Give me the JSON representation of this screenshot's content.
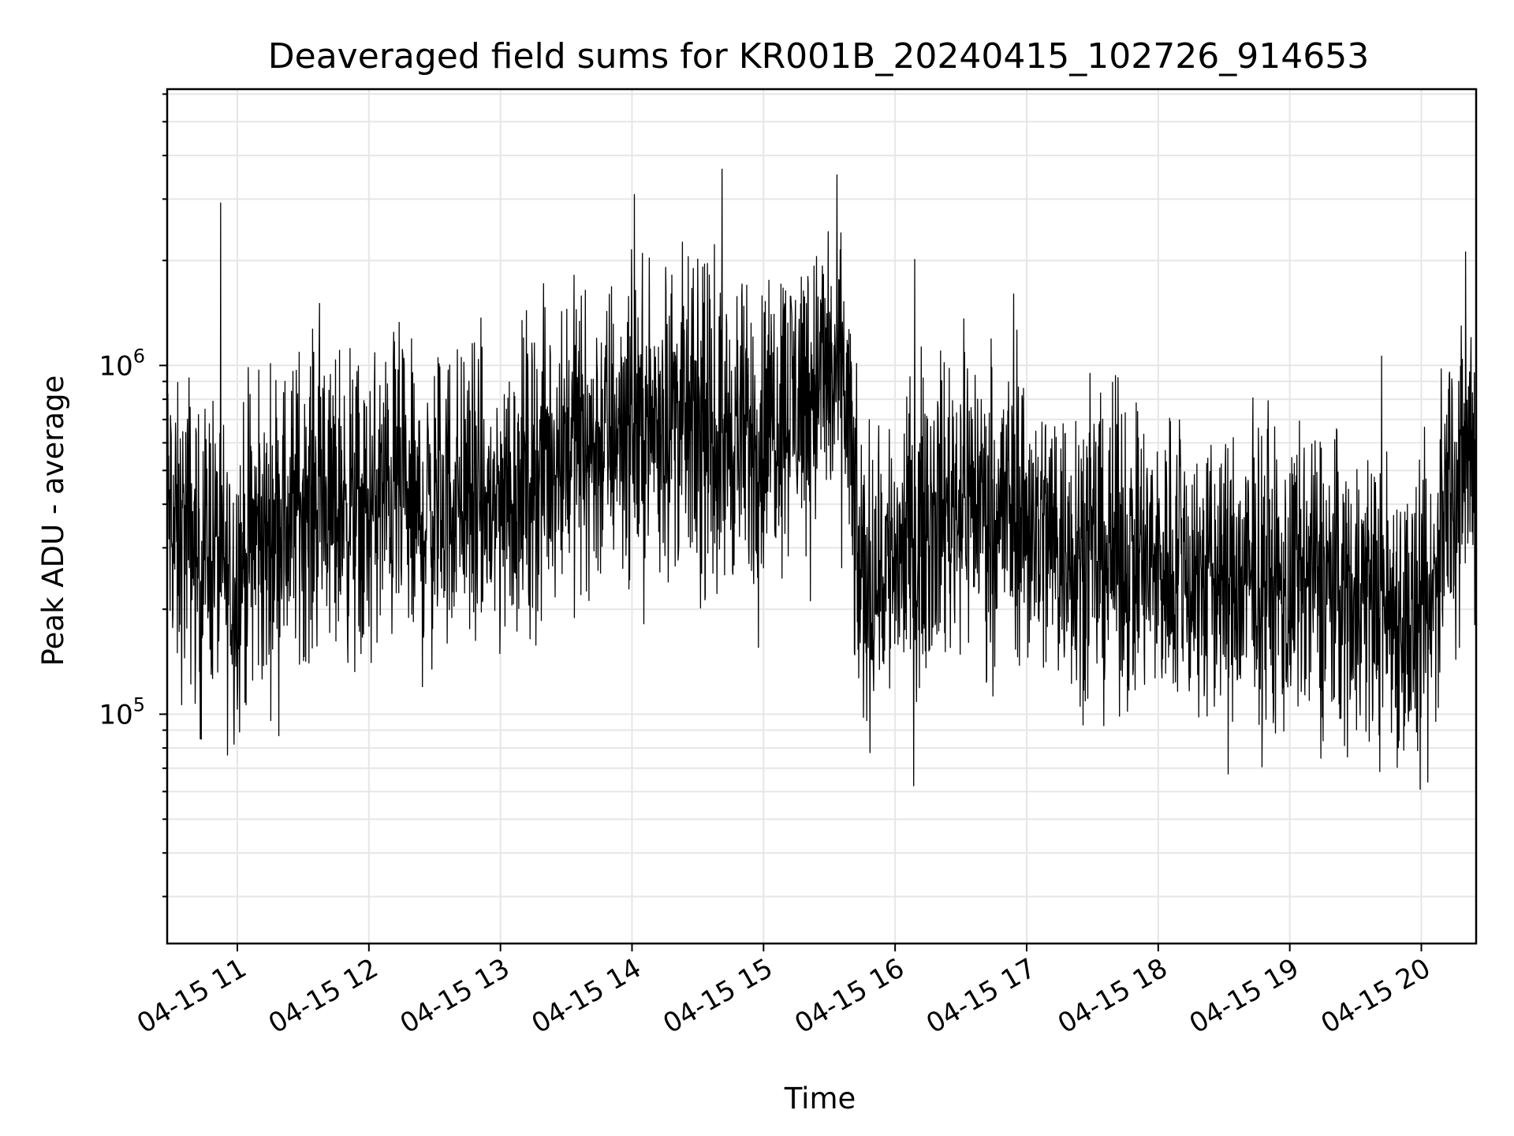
{
  "chart_data": {
    "type": "line",
    "title": "Deaveraged field sums for KR001B_20240415_102726_914653",
    "xlabel": "Time",
    "ylabel": "Peak ADU - average",
    "x_axis": {
      "kind": "datetime",
      "range": [
        "2024-04-15 10:28",
        "2024-04-15 20:25"
      ],
      "tick_labels": [
        "04-15 11",
        "04-15 12",
        "04-15 13",
        "04-15 14",
        "04-15 15",
        "04-15 16",
        "04-15 17",
        "04-15 18",
        "04-15 19",
        "04-15 20"
      ]
    },
    "y_axis": {
      "scale": "log",
      "range": [
        22000,
        6200000
      ],
      "tick_labels": [
        {
          "base": "10",
          "exp": "5",
          "value": 100000
        },
        {
          "base": "10",
          "exp": "6",
          "value": 1000000
        }
      ]
    },
    "grid": true,
    "line_color": "#000000",
    "grid_color": "#e6e6e6",
    "series": [
      {
        "values": [
          [
            "2024-04-15 10:28",
            400000
          ],
          [
            "2024-04-15 10:33",
            300000
          ],
          [
            "2024-04-15 10:38",
            350000
          ],
          [
            "2024-04-15 10:43",
            250000
          ],
          [
            "2024-04-15 10:48",
            330000
          ],
          [
            "2024-04-15 10:53",
            260000
          ],
          [
            "2024-04-15 10:58",
            230000
          ],
          [
            "2024-04-15 11:03",
            280000
          ],
          [
            "2024-04-15 11:08",
            320000
          ],
          [
            "2024-04-15 11:13",
            300000
          ],
          [
            "2024-04-15 11:18",
            380000
          ],
          [
            "2024-04-15 11:23",
            350000
          ],
          [
            "2024-04-15 11:28",
            420000
          ],
          [
            "2024-04-15 11:33",
            400000
          ],
          [
            "2024-04-15 11:38",
            450000
          ],
          [
            "2024-04-15 11:43",
            380000
          ],
          [
            "2024-04-15 11:48",
            420000
          ],
          [
            "2024-04-15 11:53",
            380000
          ],
          [
            "2024-04-15 11:58",
            350000
          ],
          [
            "2024-04-15 12:03",
            400000
          ],
          [
            "2024-04-15 12:08",
            420000
          ],
          [
            "2024-04-15 12:13",
            450000
          ],
          [
            "2024-04-15 12:18",
            380000
          ],
          [
            "2024-04-15 12:23",
            350000
          ],
          [
            "2024-04-15 12:28",
            380000
          ],
          [
            "2024-04-15 12:33",
            400000
          ],
          [
            "2024-04-15 12:38",
            420000
          ],
          [
            "2024-04-15 12:43",
            450000
          ],
          [
            "2024-04-15 12:48",
            400000
          ],
          [
            "2024-04-15 12:53",
            380000
          ],
          [
            "2024-04-15 12:58",
            400000
          ],
          [
            "2024-04-15 13:03",
            420000
          ],
          [
            "2024-04-15 13:08",
            450000
          ],
          [
            "2024-04-15 13:13",
            480000
          ],
          [
            "2024-04-15 13:18",
            500000
          ],
          [
            "2024-04-15 13:23",
            550000
          ],
          [
            "2024-04-15 13:28",
            600000
          ],
          [
            "2024-04-15 13:33",
            650000
          ],
          [
            "2024-04-15 13:38",
            600000
          ],
          [
            "2024-04-15 13:43",
            580000
          ],
          [
            "2024-04-15 13:48",
            620000
          ],
          [
            "2024-04-15 13:53",
            680000
          ],
          [
            "2024-04-15 13:58",
            700000
          ],
          [
            "2024-04-15 14:03",
            650000
          ],
          [
            "2024-04-15 14:08",
            680000
          ],
          [
            "2024-04-15 14:13",
            700000
          ],
          [
            "2024-04-15 14:18",
            750000
          ],
          [
            "2024-04-15 14:23",
            700000
          ],
          [
            "2024-04-15 14:28",
            650000
          ],
          [
            "2024-04-15 14:33",
            620000
          ],
          [
            "2024-04-15 14:38",
            600000
          ],
          [
            "2024-04-15 14:43",
            620000
          ],
          [
            "2024-04-15 14:48",
            650000
          ],
          [
            "2024-04-15 14:53",
            600000
          ],
          [
            "2024-04-15 14:58",
            620000
          ],
          [
            "2024-04-15 15:03",
            700000
          ],
          [
            "2024-04-15 15:08",
            780000
          ],
          [
            "2024-04-15 15:13",
            800000
          ],
          [
            "2024-04-15 15:18",
            850000
          ],
          [
            "2024-04-15 15:23",
            900000
          ],
          [
            "2024-04-15 15:28",
            950000
          ],
          [
            "2024-04-15 15:33",
            900000
          ],
          [
            "2024-04-15 15:38",
            850000
          ],
          [
            "2024-04-15 15:43",
            250000
          ],
          [
            "2024-04-15 15:48",
            240000
          ],
          [
            "2024-04-15 15:53",
            260000
          ],
          [
            "2024-04-15 15:58",
            280000
          ],
          [
            "2024-04-15 16:03",
            300000
          ],
          [
            "2024-04-15 16:08",
            320000
          ],
          [
            "2024-04-15 16:13",
            350000
          ],
          [
            "2024-04-15 16:18",
            380000
          ],
          [
            "2024-04-15 16:23",
            400000
          ],
          [
            "2024-04-15 16:28",
            420000
          ],
          [
            "2024-04-15 16:33",
            450000
          ],
          [
            "2024-04-15 16:38",
            420000
          ],
          [
            "2024-04-15 16:43",
            400000
          ],
          [
            "2024-04-15 16:48",
            380000
          ],
          [
            "2024-04-15 16:53",
            400000
          ],
          [
            "2024-04-15 16:58",
            380000
          ],
          [
            "2024-04-15 17:03",
            350000
          ],
          [
            "2024-04-15 17:08",
            330000
          ],
          [
            "2024-04-15 17:13",
            320000
          ],
          [
            "2024-04-15 17:18",
            300000
          ],
          [
            "2024-04-15 17:23",
            320000
          ],
          [
            "2024-04-15 17:28",
            300000
          ],
          [
            "2024-04-15 17:33",
            280000
          ],
          [
            "2024-04-15 17:38",
            290000
          ],
          [
            "2024-04-15 17:43",
            300000
          ],
          [
            "2024-04-15 17:48",
            280000
          ],
          [
            "2024-04-15 17:53",
            270000
          ],
          [
            "2024-04-15 17:58",
            260000
          ],
          [
            "2024-04-15 18:03",
            270000
          ],
          [
            "2024-04-15 18:08",
            280000
          ],
          [
            "2024-04-15 18:13",
            260000
          ],
          [
            "2024-04-15 18:18",
            250000
          ],
          [
            "2024-04-15 18:23",
            240000
          ],
          [
            "2024-04-15 18:28",
            250000
          ],
          [
            "2024-04-15 18:33",
            240000
          ],
          [
            "2024-04-15 18:38",
            230000
          ],
          [
            "2024-04-15 18:43",
            240000
          ],
          [
            "2024-04-15 18:48",
            250000
          ],
          [
            "2024-04-15 18:53",
            230000
          ],
          [
            "2024-04-15 18:58",
            220000
          ],
          [
            "2024-04-15 19:03",
            230000
          ],
          [
            "2024-04-15 19:08",
            240000
          ],
          [
            "2024-04-15 19:13",
            250000
          ],
          [
            "2024-04-15 19:18",
            240000
          ],
          [
            "2024-04-15 19:23",
            230000
          ],
          [
            "2024-04-15 19:28",
            220000
          ],
          [
            "2024-04-15 19:33",
            230000
          ],
          [
            "2024-04-15 19:38",
            220000
          ],
          [
            "2024-04-15 19:43",
            210000
          ],
          [
            "2024-04-15 19:48",
            200000
          ],
          [
            "2024-04-15 19:53",
            190000
          ],
          [
            "2024-04-15 19:58",
            170000
          ],
          [
            "2024-04-15 20:03",
            160000
          ],
          [
            "2024-04-15 20:08",
            300000
          ],
          [
            "2024-04-15 20:13",
            500000
          ],
          [
            "2024-04-15 20:18",
            450000
          ],
          [
            "2024-04-15 20:23",
            600000
          ]
        ]
      }
    ]
  }
}
